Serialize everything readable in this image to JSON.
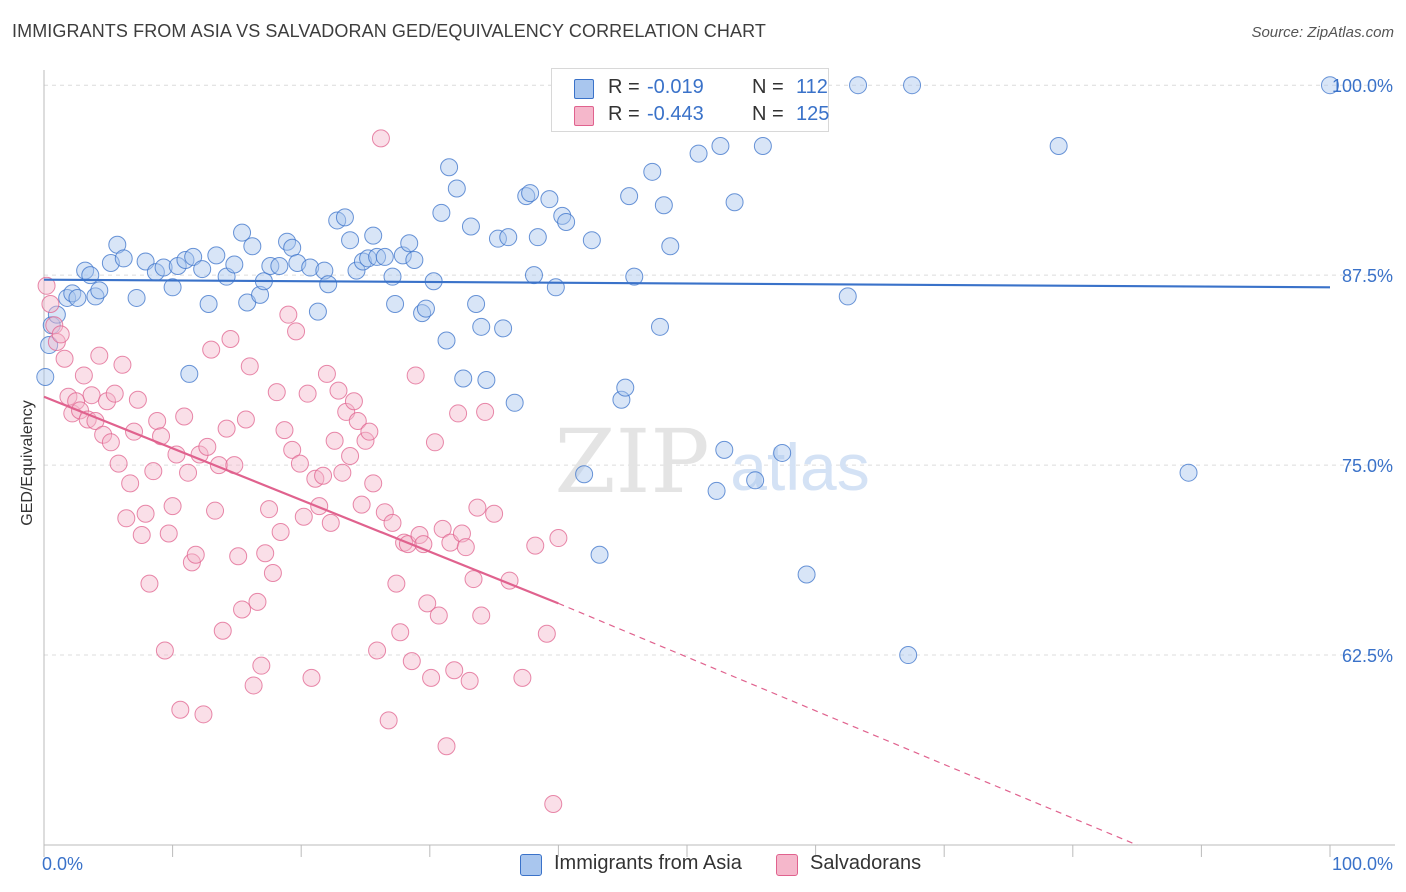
{
  "title": "IMMIGRANTS FROM ASIA VS SALVADORAN GED/EQUIVALENCY CORRELATION CHART",
  "source": "Source: ZipAtlas.com",
  "watermark": {
    "zip": "ZIP",
    "atlas": "atlas"
  },
  "colors": {
    "blue": "#3a72c9",
    "blue_fill": "#a9c6ee",
    "pink": "#e0628e",
    "pink_fill": "#f5b7cb"
  },
  "legend": {
    "r_label": "R =",
    "n_label": "N =",
    "rows": [
      {
        "r": "-0.019",
        "n": "112"
      },
      {
        "r": "-0.443",
        "n": "125"
      }
    ]
  },
  "chart_data": {
    "type": "scatter",
    "title": "IMMIGRANTS FROM ASIA VS SALVADORAN GED/EQUIVALENCY CORRELATION CHART",
    "xlabel": "",
    "ylabel": "GED/Equivalency",
    "xlim": [
      0,
      100
    ],
    "ylim": [
      50,
      101
    ],
    "x_tick_labels": [
      "0.0%",
      "100.0%"
    ],
    "y_ticks": [
      62.5,
      75.0,
      87.5,
      100.0
    ],
    "y_tick_labels": [
      "62.5%",
      "75.0%",
      "87.5%",
      "100.0%"
    ],
    "grid": "horizontal dashed",
    "legend_position": "top-center",
    "series": [
      {
        "name": "Immigrants from Asia",
        "color": "#3a72c9",
        "trend": {
          "x": [
            0,
            100
          ],
          "y": [
            87.2,
            86.7
          ]
        },
        "points": [
          [
            0.1,
            80.8
          ],
          [
            0.4,
            82.9
          ],
          [
            0.6,
            84.2
          ],
          [
            1.0,
            84.9
          ],
          [
            1.8,
            86.0
          ],
          [
            2.2,
            86.3
          ],
          [
            2.6,
            86.0
          ],
          [
            3.2,
            87.8
          ],
          [
            3.6,
            87.5
          ],
          [
            4.0,
            86.1
          ],
          [
            4.3,
            86.5
          ],
          [
            5.2,
            88.3
          ],
          [
            5.7,
            89.5
          ],
          [
            6.2,
            88.6
          ],
          [
            7.2,
            86.0
          ],
          [
            7.9,
            88.4
          ],
          [
            8.7,
            87.7
          ],
          [
            9.3,
            88.0
          ],
          [
            10.0,
            86.7
          ],
          [
            10.4,
            88.1
          ],
          [
            11.0,
            88.5
          ],
          [
            11.3,
            81.0
          ],
          [
            11.6,
            88.7
          ],
          [
            12.3,
            87.9
          ],
          [
            12.8,
            85.6
          ],
          [
            13.4,
            88.8
          ],
          [
            14.2,
            87.4
          ],
          [
            14.8,
            88.2
          ],
          [
            15.4,
            90.3
          ],
          [
            15.8,
            85.7
          ],
          [
            16.2,
            89.4
          ],
          [
            16.8,
            86.2
          ],
          [
            17.1,
            87.1
          ],
          [
            17.6,
            88.1
          ],
          [
            18.3,
            88.1
          ],
          [
            18.9,
            89.7
          ],
          [
            19.3,
            89.3
          ],
          [
            19.7,
            88.3
          ],
          [
            20.7,
            88.0
          ],
          [
            21.3,
            85.1
          ],
          [
            21.8,
            87.8
          ],
          [
            22.1,
            86.9
          ],
          [
            22.8,
            91.1
          ],
          [
            23.4,
            91.3
          ],
          [
            23.8,
            89.8
          ],
          [
            24.3,
            87.8
          ],
          [
            24.8,
            88.4
          ],
          [
            25.2,
            88.6
          ],
          [
            25.6,
            90.1
          ],
          [
            25.9,
            88.7
          ],
          [
            26.5,
            88.7
          ],
          [
            27.1,
            87.4
          ],
          [
            27.3,
            85.6
          ],
          [
            27.9,
            88.8
          ],
          [
            28.4,
            89.6
          ],
          [
            28.8,
            88.5
          ],
          [
            29.4,
            85.0
          ],
          [
            29.7,
            85.3
          ],
          [
            30.3,
            87.1
          ],
          [
            30.9,
            91.6
          ],
          [
            31.3,
            83.2
          ],
          [
            31.5,
            94.6
          ],
          [
            32.1,
            93.2
          ],
          [
            32.6,
            80.7
          ],
          [
            33.2,
            90.7
          ],
          [
            33.6,
            85.6
          ],
          [
            34.0,
            84.1
          ],
          [
            34.4,
            80.6
          ],
          [
            35.3,
            89.9
          ],
          [
            35.7,
            84.0
          ],
          [
            36.1,
            90.0
          ],
          [
            36.6,
            79.1
          ],
          [
            37.5,
            92.7
          ],
          [
            37.8,
            92.9
          ],
          [
            38.1,
            87.5
          ],
          [
            38.4,
            90.0
          ],
          [
            39.3,
            92.5
          ],
          [
            39.8,
            86.7
          ],
          [
            40.3,
            91.4
          ],
          [
            40.6,
            91.0
          ],
          [
            42.0,
            74.4
          ],
          [
            42.6,
            89.8
          ],
          [
            43.2,
            69.1
          ],
          [
            44.9,
            79.3
          ],
          [
            45.2,
            80.1
          ],
          [
            45.5,
            92.7
          ],
          [
            45.9,
            87.4
          ],
          [
            46.2,
            100.0
          ],
          [
            47.3,
            94.3
          ],
          [
            47.9,
            84.1
          ],
          [
            48.2,
            92.1
          ],
          [
            48.7,
            89.4
          ],
          [
            50.2,
            99.9
          ],
          [
            50.9,
            95.5
          ],
          [
            52.3,
            73.3
          ],
          [
            52.6,
            96.0
          ],
          [
            52.9,
            76.0
          ],
          [
            53.7,
            92.3
          ],
          [
            55.3,
            74.0
          ],
          [
            55.9,
            96.0
          ],
          [
            57.4,
            75.8
          ],
          [
            59.3,
            67.8
          ],
          [
            62.5,
            86.1
          ],
          [
            63.3,
            100.0
          ],
          [
            67.2,
            62.5
          ],
          [
            67.5,
            100.0
          ],
          [
            78.9,
            96.0
          ],
          [
            89.0,
            74.5
          ],
          [
            100.0,
            100.0
          ]
        ]
      },
      {
        "name": "Salvadorans",
        "color": "#e0628e",
        "trend": {
          "x": [
            0,
            40
          ],
          "y": [
            79.5,
            65.9
          ],
          "dashed_to": {
            "x": 85,
            "y": 50
          }
        },
        "points": [
          [
            0.2,
            86.8
          ],
          [
            0.5,
            85.6
          ],
          [
            0.8,
            84.2
          ],
          [
            1.0,
            83.1
          ],
          [
            1.3,
            83.6
          ],
          [
            1.6,
            82.0
          ],
          [
            1.9,
            79.5
          ],
          [
            2.2,
            78.4
          ],
          [
            2.5,
            79.2
          ],
          [
            2.8,
            78.6
          ],
          [
            3.1,
            80.9
          ],
          [
            3.4,
            78.0
          ],
          [
            3.7,
            79.6
          ],
          [
            4.0,
            77.9
          ],
          [
            4.3,
            82.2
          ],
          [
            4.6,
            77.0
          ],
          [
            4.9,
            79.2
          ],
          [
            5.2,
            76.5
          ],
          [
            5.5,
            79.7
          ],
          [
            5.8,
            75.1
          ],
          [
            6.1,
            81.6
          ],
          [
            6.4,
            71.5
          ],
          [
            6.7,
            73.8
          ],
          [
            7.0,
            77.2
          ],
          [
            7.3,
            79.3
          ],
          [
            7.6,
            70.4
          ],
          [
            7.9,
            71.8
          ],
          [
            8.2,
            67.2
          ],
          [
            8.5,
            74.6
          ],
          [
            8.8,
            77.9
          ],
          [
            9.1,
            76.9
          ],
          [
            9.4,
            62.8
          ],
          [
            9.7,
            70.5
          ],
          [
            10.0,
            72.3
          ],
          [
            10.3,
            75.7
          ],
          [
            10.6,
            58.9
          ],
          [
            10.9,
            78.2
          ],
          [
            11.2,
            74.5
          ],
          [
            11.5,
            68.6
          ],
          [
            11.8,
            69.1
          ],
          [
            12.1,
            75.7
          ],
          [
            12.4,
            58.6
          ],
          [
            12.7,
            76.2
          ],
          [
            13.0,
            82.6
          ],
          [
            13.3,
            72.0
          ],
          [
            13.6,
            75.0
          ],
          [
            13.9,
            64.1
          ],
          [
            14.2,
            77.4
          ],
          [
            14.5,
            83.3
          ],
          [
            14.8,
            75.0
          ],
          [
            15.1,
            69.0
          ],
          [
            15.4,
            65.5
          ],
          [
            15.7,
            78.0
          ],
          [
            16.0,
            81.5
          ],
          [
            16.3,
            60.5
          ],
          [
            16.6,
            66.0
          ],
          [
            16.9,
            61.8
          ],
          [
            17.2,
            69.2
          ],
          [
            17.5,
            72.1
          ],
          [
            17.8,
            67.9
          ],
          [
            18.1,
            79.8
          ],
          [
            18.4,
            70.6
          ],
          [
            18.7,
            77.3
          ],
          [
            19.0,
            84.9
          ],
          [
            19.3,
            76.0
          ],
          [
            19.6,
            83.8
          ],
          [
            19.9,
            75.1
          ],
          [
            20.2,
            71.6
          ],
          [
            20.5,
            79.7
          ],
          [
            20.8,
            61.0
          ],
          [
            21.1,
            74.1
          ],
          [
            21.4,
            72.3
          ],
          [
            21.7,
            74.3
          ],
          [
            22.0,
            81.0
          ],
          [
            22.3,
            71.2
          ],
          [
            22.6,
            76.6
          ],
          [
            22.9,
            79.9
          ],
          [
            23.2,
            74.5
          ],
          [
            23.5,
            78.5
          ],
          [
            23.8,
            75.6
          ],
          [
            24.1,
            79.2
          ],
          [
            24.4,
            77.9
          ],
          [
            24.7,
            72.4
          ],
          [
            25.0,
            76.6
          ],
          [
            25.3,
            77.2
          ],
          [
            25.6,
            73.8
          ],
          [
            25.9,
            62.8
          ],
          [
            26.2,
            96.5
          ],
          [
            26.5,
            71.9
          ],
          [
            26.8,
            58.2
          ],
          [
            27.1,
            71.2
          ],
          [
            27.4,
            67.2
          ],
          [
            27.7,
            64.0
          ],
          [
            28.0,
            69.9
          ],
          [
            28.3,
            69.8
          ],
          [
            28.6,
            62.1
          ],
          [
            28.9,
            80.9
          ],
          [
            29.2,
            70.4
          ],
          [
            29.5,
            69.8
          ],
          [
            29.8,
            65.9
          ],
          [
            30.1,
            61.0
          ],
          [
            30.4,
            76.5
          ],
          [
            30.7,
            65.1
          ],
          [
            31.0,
            70.8
          ],
          [
            31.3,
            56.5
          ],
          [
            31.6,
            69.9
          ],
          [
            31.9,
            61.5
          ],
          [
            32.2,
            78.4
          ],
          [
            32.5,
            70.5
          ],
          [
            32.8,
            69.6
          ],
          [
            33.1,
            60.8
          ],
          [
            33.4,
            67.5
          ],
          [
            33.7,
            72.2
          ],
          [
            34.0,
            65.1
          ],
          [
            34.3,
            78.5
          ],
          [
            35.0,
            71.8
          ],
          [
            36.2,
            67.4
          ],
          [
            37.2,
            61.0
          ],
          [
            38.2,
            69.7
          ],
          [
            39.1,
            63.9
          ],
          [
            39.6,
            52.7
          ],
          [
            40.0,
            70.2
          ]
        ]
      }
    ]
  },
  "bottom_legend": [
    {
      "label": "Immigrants from Asia"
    },
    {
      "label": "Salvadorans"
    }
  ]
}
